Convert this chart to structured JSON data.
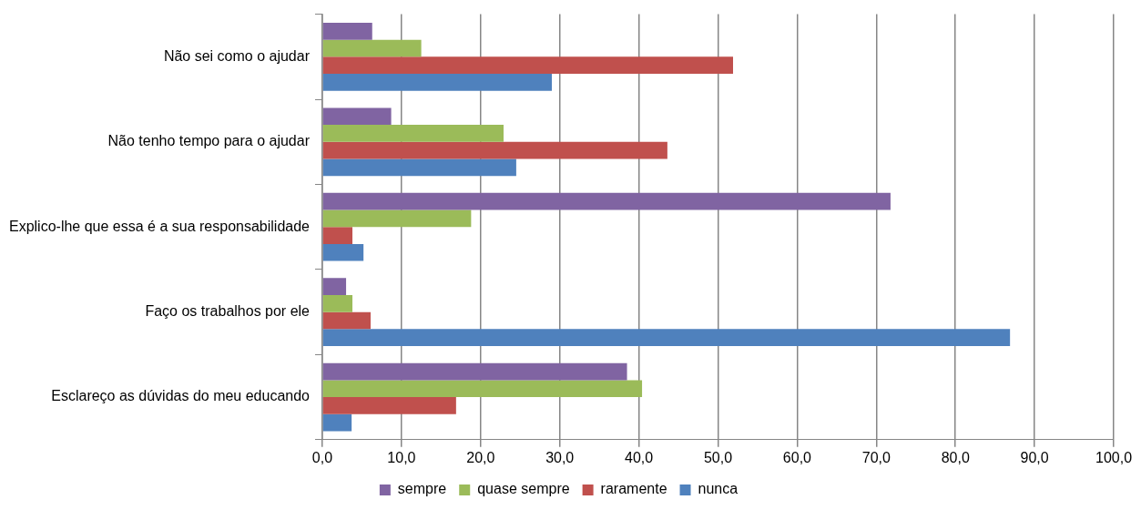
{
  "chart_data": {
    "type": "bar",
    "orientation": "horizontal",
    "categories": [
      "Não sei como o ajudar",
      "Não tenho tempo para o ajudar",
      "Explico-lhe que essa é a sua responsabilidade",
      "Faço os trabalhos por ele",
      "Esclareço as dúvidas do meu educando"
    ],
    "series": [
      {
        "name": "sempre",
        "color": "#8064a2",
        "values": [
          6.3,
          8.7,
          71.8,
          3.0,
          38.5
        ]
      },
      {
        "name": "quase sempre",
        "color": "#9bbb59",
        "values": [
          12.5,
          22.9,
          18.8,
          3.8,
          40.4
        ]
      },
      {
        "name": "raramente",
        "color": "#c0504d",
        "values": [
          51.9,
          43.6,
          3.8,
          6.1,
          16.9
        ]
      },
      {
        "name": "nunca",
        "color": "#4f81bd",
        "values": [
          29.0,
          24.5,
          5.2,
          86.9,
          3.7
        ]
      }
    ],
    "xlim": [
      0,
      100
    ],
    "xticks": [
      {
        "value": 0,
        "label": "0,0"
      },
      {
        "value": 10,
        "label": "10,0"
      },
      {
        "value": 20,
        "label": "20,0"
      },
      {
        "value": 30,
        "label": "30,0"
      },
      {
        "value": 40,
        "label": "40,0"
      },
      {
        "value": 50,
        "label": "50,0"
      },
      {
        "value": 60,
        "label": "60,0"
      },
      {
        "value": 70,
        "label": "70,0"
      },
      {
        "value": 80,
        "label": "80,0"
      },
      {
        "value": 90,
        "label": "90,0"
      },
      {
        "value": 100,
        "label": "100,0"
      }
    ],
    "grid": "x",
    "legend": "bottom"
  }
}
